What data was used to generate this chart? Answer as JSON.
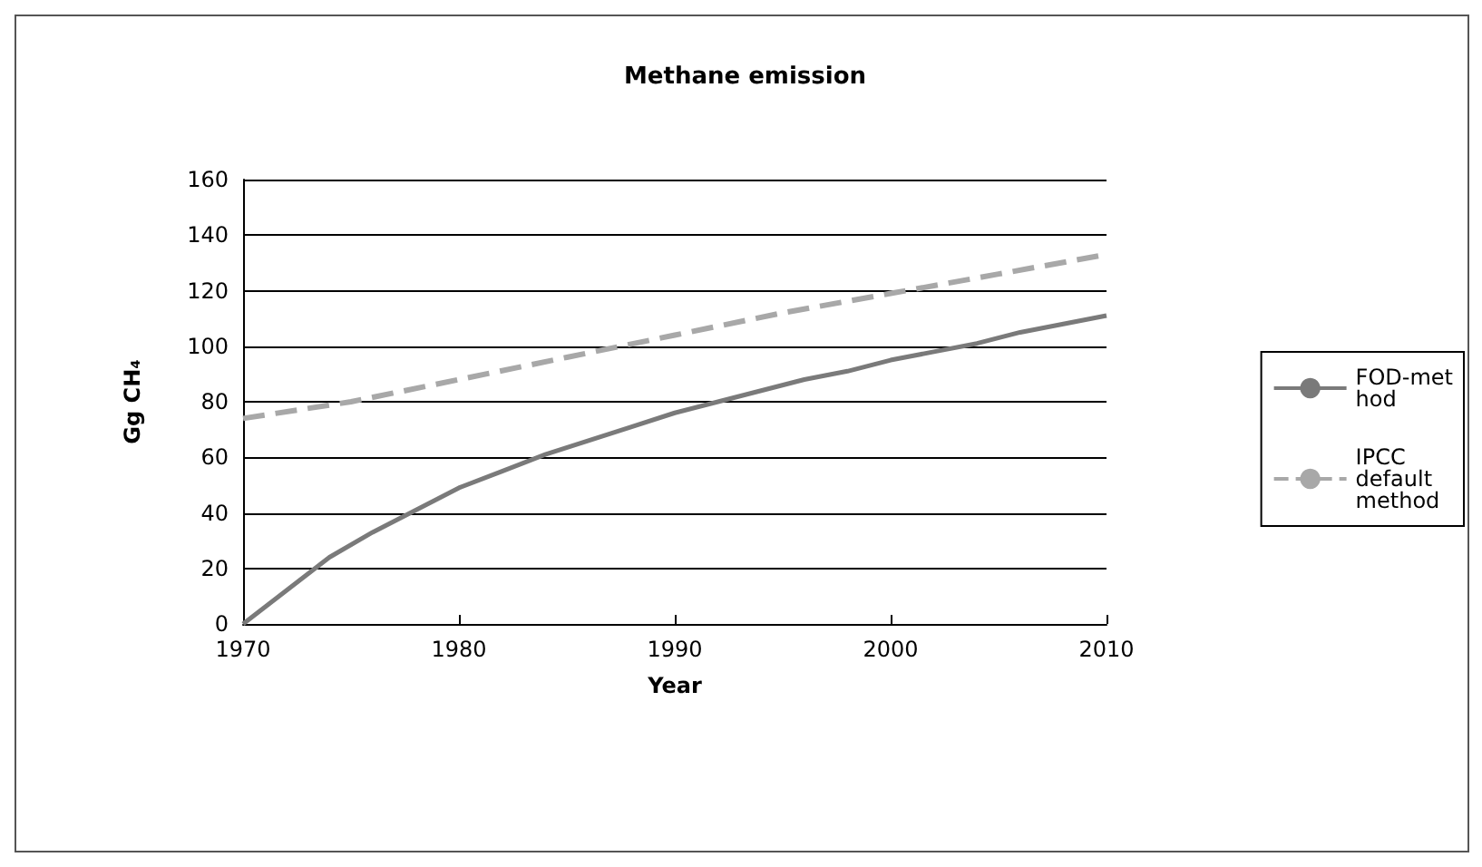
{
  "chart_data": {
    "type": "line",
    "title": "Methane emission",
    "xlabel": "Year",
    "ylabel": "Gg CH₄",
    "xlim": [
      1970,
      2010
    ],
    "xticks": [
      1970,
      1980,
      1990,
      2000,
      2010
    ],
    "ylim": [
      0,
      160
    ],
    "yticks": [
      0,
      20,
      40,
      60,
      80,
      100,
      120,
      140,
      160
    ],
    "grid": "y",
    "legend": "right",
    "marker": "none",
    "series": [
      {
        "name": "FOD-method",
        "color": "#7a7a7a",
        "line_style": "solid",
        "x": [
          1970,
          1972,
          1974,
          1976,
          1978,
          1980,
          1982,
          1984,
          1986,
          1988,
          1990,
          1992,
          1994,
          1996,
          1998,
          2000,
          2002,
          2004,
          2006,
          2008,
          2010
        ],
        "values": [
          0,
          12,
          24,
          33,
          41,
          49,
          55,
          61,
          66,
          71,
          76,
          80,
          84,
          88,
          91,
          95,
          98,
          101,
          105,
          108,
          111
        ]
      },
      {
        "name": "IPCC default method",
        "color": "#a8a8a8",
        "line_style": "dashed",
        "x": [
          1970,
          1975,
          1980,
          1985,
          1990,
          1995,
          2000,
          2005,
          2010
        ],
        "values": [
          74,
          80,
          88,
          96,
          104,
          112,
          119,
          126,
          133
        ]
      }
    ]
  }
}
